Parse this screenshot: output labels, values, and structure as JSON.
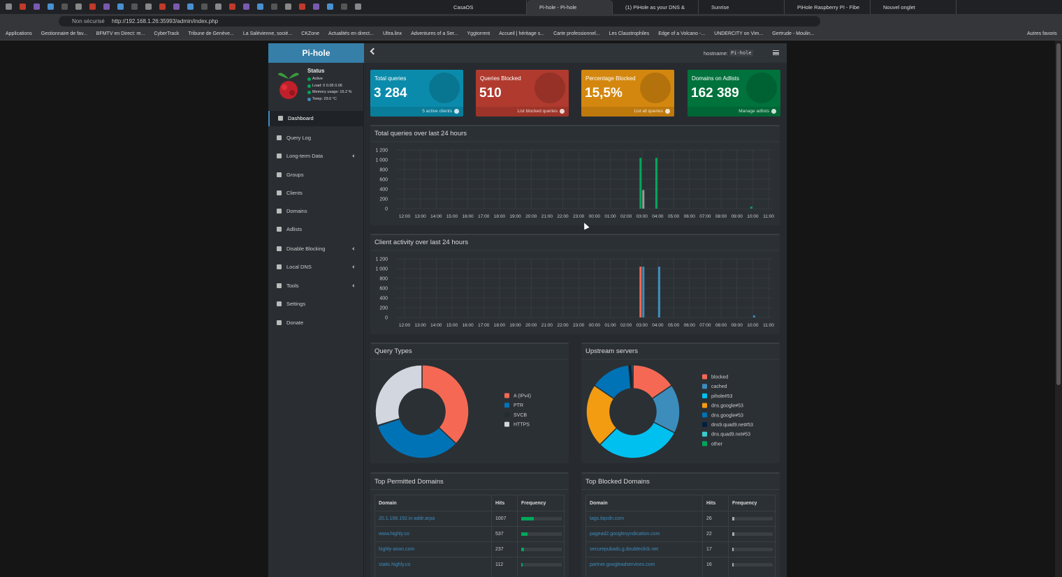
{
  "browser": {
    "tabs": [
      "CasaOS",
      "Pi-hole - Pi-hole",
      "(1) PiHole as your DNS &",
      "Sunrise",
      "PiHole Raspberry PI - Fibe",
      "Nouvel onglet"
    ],
    "security": "Non sécurisé",
    "url": "http://192.168.1.26:35993/admin/index.php",
    "bookmarks": [
      "Applications",
      "Gestionnaire de fav...",
      "BFMTV en Direct: re...",
      "CyberTrack",
      "Tribune de Genève...",
      "La Salévienne, socié...",
      "CKZone",
      "Actualités en direct...",
      "Ultra.linx",
      "Adventures of a Ser...",
      "Yggtorrent",
      "Accueil | héritage s...",
      "Carte professionnel...",
      "Les Claustrophiles",
      "Edge of a Volcano -...",
      "UNDERCITY on Vim...",
      "Gertrude - Moulin..."
    ],
    "other_bookmarks": "Autres favoris"
  },
  "sidebar": {
    "brand": "Pi-hole",
    "status_title": "Status",
    "status": [
      "Active",
      "Load:  0  0.05  0.06",
      "Memory usage:  16.2 %",
      "Temp: 29.0 °C"
    ],
    "menu": [
      "Dashboard",
      "Query Log",
      "Long-term Data",
      "Groups",
      "Clients",
      "Domains",
      "Adlists",
      "Disable Blocking",
      "Local DNS",
      "Tools",
      "Settings",
      "Donate"
    ]
  },
  "header": {
    "hostname_label": "hostname:",
    "hostname": "Pi-hole"
  },
  "stats": [
    {
      "title": "Total queries",
      "value": {
        "value": 3284,
        "label": "3 284"
      },
      "footer": "5 active clients",
      "color": "#0b8bab"
    },
    {
      "title": "Queries Blocked",
      "value": {
        "value": 510,
        "label": "510"
      },
      "footer": "List blocked queries",
      "color": "#b03a2e"
    },
    {
      "title": "Percentage Blocked",
      "value": {
        "value": 15.5,
        "label": "15,5%"
      },
      "footer": "List all queries",
      "color": "#d4870f"
    },
    {
      "title": "Domains on Adlists",
      "value": {
        "value": 162389,
        "label": "162 389"
      },
      "footer": "Manage adlists",
      "color": "#00723c"
    }
  ],
  "charts": [
    {
      "type": "bar",
      "title": "Total queries over last 24 hours",
      "categories": [
        "12:00",
        "13:00",
        "14:00",
        "15:00",
        "16:00",
        "17:00",
        "18:00",
        "19:00",
        "20:00",
        "21:00",
        "22:00",
        "23:00",
        "00:00",
        "01:00",
        "02:00",
        "03:00",
        "04:00",
        "05:00",
        "06:00",
        "07:00",
        "08:00",
        "09:00",
        "10:00",
        "11:00"
      ],
      "series": [
        {
          "color": "#00a65a",
          "values": [
            0,
            0,
            0,
            0,
            0,
            0,
            0,
            0,
            0,
            0,
            0,
            0,
            0,
            0,
            0,
            1040,
            1040,
            0,
            0,
            0,
            0,
            0,
            40,
            0
          ]
        },
        {
          "color": "#9a9a9a",
          "values": [
            0,
            0,
            0,
            0,
            0,
            0,
            0,
            0,
            0,
            0,
            0,
            0,
            0,
            0,
            0,
            380,
            0,
            0,
            0,
            0,
            0,
            0,
            0,
            0
          ]
        }
      ],
      "ylim": [
        0,
        1200
      ],
      "yticks": [
        0,
        200,
        400,
        600,
        800,
        {
          "value": 1000,
          "label": "1 000"
        },
        {
          "value": 1200,
          "label": "1 200"
        }
      ],
      "grid": true
    },
    {
      "type": "bar",
      "title": "Client activity over last 24 hours",
      "categories": [
        "12:00",
        "13:00",
        "14:00",
        "15:00",
        "16:00",
        "17:00",
        "18:00",
        "19:00",
        "20:00",
        "21:00",
        "22:00",
        "23:00",
        "00:00",
        "01:00",
        "02:00",
        "03:00",
        "04:00",
        "05:00",
        "06:00",
        "07:00",
        "08:00",
        "09:00",
        "10:00",
        "11:00"
      ],
      "series": [
        {
          "color": "#f56954",
          "values": [
            0,
            0,
            0,
            0,
            0,
            0,
            0,
            0,
            0,
            0,
            0,
            0,
            0,
            0,
            0,
            1040,
            0,
            0,
            0,
            0,
            0,
            0,
            0,
            0
          ]
        },
        {
          "color": "#3c8dbc",
          "values": [
            0,
            0,
            0,
            0,
            0,
            0,
            0,
            0,
            0,
            0,
            0,
            0,
            0,
            0,
            0,
            1040,
            1040,
            0,
            0,
            0,
            0,
            0,
            40,
            0
          ]
        }
      ],
      "ylim": [
        0,
        1200
      ],
      "yticks": [
        0,
        200,
        400,
        600,
        800,
        {
          "value": 1000,
          "label": "1 000"
        },
        {
          "value": 1200,
          "label": "1 200"
        }
      ],
      "grid": true
    },
    {
      "type": "pie",
      "title": "Query Types",
      "categories": [
        "A (IPv4)",
        "PTR",
        "SVCB",
        "HTTPS"
      ],
      "values": [
        37,
        33,
        0.2,
        29.8
      ],
      "colors": [
        "#f56954",
        "#0073b7",
        "#222d32",
        "#d2d6de"
      ]
    },
    {
      "type": "pie",
      "title": "Upstream servers",
      "categories": [
        "blocked",
        "cached",
        "pihole#53",
        "dns.google#53",
        "dns.google#53",
        "dns9.quad9.net#53",
        "dns.quad9.net#53",
        "other"
      ],
      "values": [
        15.5,
        17,
        30,
        22,
        14,
        1,
        0.5,
        0
      ],
      "colors": [
        "#f56954",
        "#3c8dbc",
        "#00c0ef",
        "#f39c12",
        "#0073b7",
        "#001f3f",
        "#39cccc",
        "#00a65a"
      ]
    }
  ],
  "tables": [
    {
      "title": "Top Permitted Domains",
      "columns": [
        "Domain",
        "Hits",
        "Frequency"
      ],
      "color": "#00a65a",
      "rows": [
        [
          "20.1.168.192.in-addr.arpa",
          1007
        ],
        [
          "www.highly.co",
          537
        ],
        [
          "highly-anon.com",
          237
        ],
        [
          "static.highly.co",
          112
        ]
      ]
    },
    {
      "title": "Top Blocked Domains",
      "columns": [
        "Domain",
        "Hits",
        "Frequency"
      ],
      "color": "#aaaaaa",
      "rows": [
        [
          "tags.tiqcdn.com",
          26
        ],
        [
          "pagead2.googlesyndication.com",
          22
        ],
        [
          "securepubads.g.doubleclick.net",
          17
        ],
        [
          "partner.googleadservices.com",
          16
        ]
      ]
    }
  ]
}
